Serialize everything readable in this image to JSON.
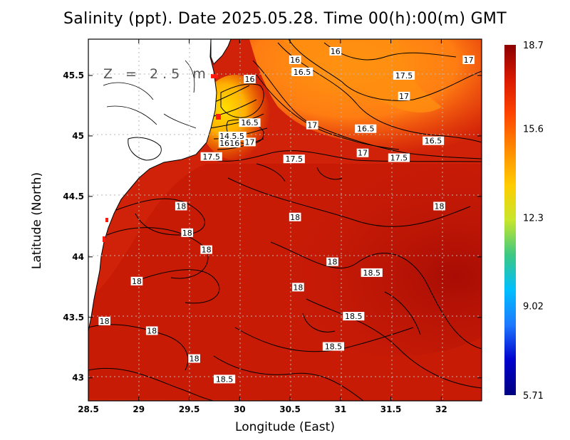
{
  "title": "Salinity (ppt). Date 2025.05.28. Time 00(h):00(m) GMT",
  "depth_label": "Z = 2.5 m",
  "axes": {
    "xlabel": "Longitude (East)",
    "ylabel": "Latitude (North)",
    "xlim": [
      28.5,
      32.4
    ],
    "ylim": [
      42.81,
      45.8
    ],
    "xticks": [
      "28.5",
      "29",
      "29.5",
      "30",
      "30.5",
      "31",
      "31.5",
      "32"
    ],
    "yticks": [
      "43",
      "43.5",
      "44",
      "44.5",
      "45",
      "45.5"
    ],
    "grid": true
  },
  "colorbar": {
    "min": 5.71,
    "max": 18.7,
    "tick_labels": [
      "18.7",
      "15.6",
      "12.3",
      "9.02",
      "5.71"
    ],
    "colors": [
      "#8b0000",
      "#d91a00",
      "#ff4500",
      "#ff8c00",
      "#ffcc00",
      "#c8e62b",
      "#3cc884",
      "#00bfff",
      "#1e78ff",
      "#0000cd",
      "#000080"
    ]
  },
  "contour_labels": [
    {
      "text": "16",
      "lon": 30.95,
      "lat": 45.7
    },
    {
      "text": "16",
      "lon": 30.55,
      "lat": 45.63
    },
    {
      "text": "17",
      "lon": 32.27,
      "lat": 45.63
    },
    {
      "text": "16.5",
      "lon": 30.62,
      "lat": 45.53
    },
    {
      "text": "17.5",
      "lon": 31.63,
      "lat": 45.5
    },
    {
      "text": "16",
      "lon": 30.1,
      "lat": 45.47
    },
    {
      "text": "17",
      "lon": 31.63,
      "lat": 45.33
    },
    {
      "text": "16.5",
      "lon": 30.1,
      "lat": 45.11
    },
    {
      "text": "15.5",
      "lon": 29.96,
      "lat": 45.0
    },
    {
      "text": "14",
      "lon": 29.85,
      "lat": 45.0
    },
    {
      "text": "16",
      "lon": 29.95,
      "lat": 44.94
    },
    {
      "text": "16",
      "lon": 29.85,
      "lat": 44.94
    },
    {
      "text": "17",
      "lon": 30.1,
      "lat": 44.95
    },
    {
      "text": "17",
      "lon": 30.72,
      "lat": 45.09
    },
    {
      "text": "16.5",
      "lon": 31.25,
      "lat": 45.06
    },
    {
      "text": "16.5",
      "lon": 31.92,
      "lat": 44.96
    },
    {
      "text": "17",
      "lon": 31.22,
      "lat": 44.86
    },
    {
      "text": "17.5",
      "lon": 29.72,
      "lat": 44.83
    },
    {
      "text": "17.5",
      "lon": 30.54,
      "lat": 44.81
    },
    {
      "text": "17.5",
      "lon": 31.58,
      "lat": 44.82
    },
    {
      "text": "18",
      "lon": 29.42,
      "lat": 44.42
    },
    {
      "text": "18",
      "lon": 31.98,
      "lat": 44.42
    },
    {
      "text": "18",
      "lon": 30.55,
      "lat": 44.33
    },
    {
      "text": "18",
      "lon": 29.48,
      "lat": 44.2
    },
    {
      "text": "18",
      "lon": 29.67,
      "lat": 44.06
    },
    {
      "text": "18",
      "lon": 30.92,
      "lat": 43.96
    },
    {
      "text": "18.5",
      "lon": 31.31,
      "lat": 43.87
    },
    {
      "text": "18",
      "lon": 28.98,
      "lat": 43.8
    },
    {
      "text": "18",
      "lon": 30.58,
      "lat": 43.75
    },
    {
      "text": "18.5",
      "lon": 31.13,
      "lat": 43.51
    },
    {
      "text": "18",
      "lon": 28.66,
      "lat": 43.47
    },
    {
      "text": "18",
      "lon": 29.13,
      "lat": 43.39
    },
    {
      "text": "18.5",
      "lon": 30.93,
      "lat": 43.26
    },
    {
      "text": "18",
      "lon": 29.55,
      "lat": 43.16
    },
    {
      "text": "18.5",
      "lon": 29.85,
      "lat": 42.99
    }
  ]
}
